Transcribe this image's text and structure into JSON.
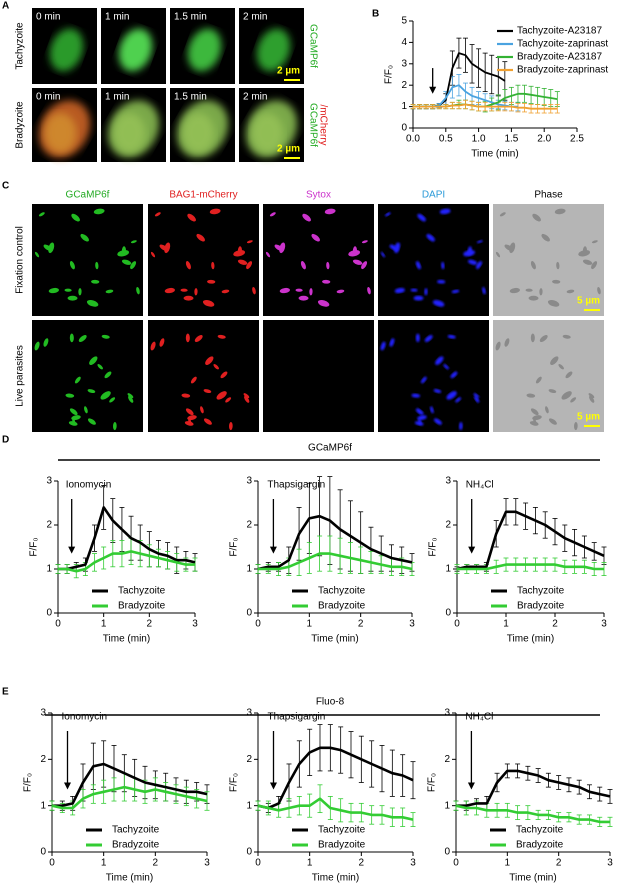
{
  "figure": {
    "panel_labels": [
      "A",
      "B",
      "C",
      "D",
      "E"
    ],
    "panel_a": {
      "rows": [
        {
          "label": "Tachyzoite",
          "times": [
            "0 min",
            "1 min",
            "1.5 min",
            "2 min"
          ],
          "scale_bar": "2 µm",
          "channels": [
            "GCaMP6f"
          ]
        },
        {
          "label": "Bradyzoite",
          "times": [
            "0 min",
            "1 min",
            "1.5 min",
            "2 min"
          ],
          "scale_bar": "2 µm",
          "channels": [
            "GCaMP6f",
            "/mCherry"
          ]
        }
      ]
    },
    "panel_c": {
      "columns": [
        "GCaMP6f",
        "BAG1-mCherry",
        "Sytox",
        "DAPI",
        "Phase"
      ],
      "rows": [
        "Fixation control",
        "Live parasites"
      ],
      "scale_bars": [
        "5 µm",
        "5 µm"
      ]
    },
    "panel_d_title": "GCaMP6f",
    "panel_e_title": "Fluo-8"
  },
  "chart_data": [
    {
      "type": "line",
      "xlabel": "Time (min)",
      "ylabel": "F/F₀",
      "legend": "upper right",
      "annotation": {
        "x": 0.3
      },
      "x": [
        0,
        0.1,
        0.2,
        0.3,
        0.4,
        0.5,
        0.6,
        0.7,
        0.8,
        0.9,
        1.0,
        1.1,
        1.2,
        1.3,
        1.4,
        1.5,
        1.6,
        1.7,
        1.8,
        1.9,
        2.0,
        2.1,
        2.2
      ],
      "xlim": [
        0,
        2.5
      ],
      "xticks": [
        {
          "value": 0,
          "label": "0.0"
        },
        0.5,
        {
          "value": 1,
          "label": "1.0"
        },
        1.5,
        {
          "value": 2,
          "label": "2.0"
        },
        2.5
      ],
      "ylim": [
        0,
        5
      ],
      "yticks": [
        0,
        1,
        2,
        3,
        4,
        5
      ],
      "series": [
        {
          "name": "Tachyzoite-A23187",
          "color": "#000000",
          "values": [
            1,
            1,
            1,
            1,
            1.05,
            1.3,
            2.8,
            3.5,
            3.4,
            3.0,
            2.8,
            2.6,
            2.5,
            2.4,
            2.2,
            null,
            null,
            null,
            null,
            null,
            null,
            null,
            null
          ],
          "errors": [
            0.1,
            0.1,
            0.1,
            0.1,
            0.1,
            0.3,
            0.8,
            0.7,
            0.8,
            0.9,
            0.9,
            0.9,
            0.9,
            0.9,
            0.9,
            null,
            null,
            null,
            null,
            null,
            null,
            null,
            null
          ]
        },
        {
          "name": "Tachyzoite-zaprinast",
          "color": "#4aa3e0",
          "values": [
            1,
            1,
            1,
            1,
            1.05,
            1.4,
            1.9,
            2.0,
            1.7,
            1.5,
            1.4,
            1.3,
            1.2,
            1.1,
            1.05,
            1.0,
            1.0,
            null,
            null,
            null,
            null,
            null,
            null
          ],
          "errors": [
            0.1,
            0.1,
            0.1,
            0.1,
            0.1,
            0.3,
            0.5,
            0.5,
            0.4,
            0.4,
            0.3,
            0.3,
            0.3,
            0.2,
            0.2,
            0.2,
            0.2,
            null,
            null,
            null,
            null,
            null,
            null
          ]
        },
        {
          "name": "Bradyzoite-A23187",
          "color": "#33b233",
          "values": [
            1,
            1,
            1,
            1,
            1,
            1,
            1.05,
            1.1,
            1.1,
            1.05,
            1.0,
            1.0,
            1.1,
            1.2,
            1.4,
            1.5,
            1.6,
            1.6,
            1.55,
            1.5,
            1.45,
            1.4,
            1.35
          ],
          "errors": [
            0.1,
            0.1,
            0.1,
            0.1,
            0.1,
            0.1,
            0.15,
            0.2,
            0.2,
            0.2,
            0.2,
            0.25,
            0.3,
            0.35,
            0.4,
            0.4,
            0.4,
            0.4,
            0.4,
            0.4,
            0.4,
            0.4,
            0.35
          ]
        },
        {
          "name": "Bradyzoite-zaprinast",
          "color": "#f0a030",
          "values": [
            1,
            1,
            1,
            1,
            1,
            1,
            1.05,
            1.05,
            1.1,
            1.05,
            1.0,
            1.0,
            1.0,
            1.0,
            1.0,
            1.0,
            0.95,
            0.95,
            0.9,
            0.9,
            0.9,
            0.9,
            0.9
          ],
          "errors": [
            0.1,
            0.1,
            0.1,
            0.1,
            0.1,
            0.1,
            0.15,
            0.15,
            0.2,
            0.2,
            0.2,
            0.2,
            0.2,
            0.2,
            0.2,
            0.2,
            0.2,
            0.2,
            0.2,
            0.2,
            0.2,
            0.2,
            0.2
          ]
        }
      ]
    },
    {
      "type": "line",
      "xlabel": "Time (min)",
      "ylabel": "F/F₀",
      "legend": "lower left",
      "annotation": {
        "text": "Ionomycin",
        "x": 0.3
      },
      "x": [
        0,
        0.2,
        0.4,
        0.6,
        0.8,
        1.0,
        1.2,
        1.4,
        1.6,
        1.8,
        2.0,
        2.2,
        2.4,
        2.6,
        2.8,
        3.0
      ],
      "xlim": [
        0,
        3
      ],
      "xticks": [
        0,
        1,
        2,
        3
      ],
      "ylim": [
        0,
        3
      ],
      "yticks": [
        0,
        1,
        2,
        3
      ],
      "series": [
        {
          "name": "Tachyzoite",
          "color": "#000000",
          "values": [
            1,
            1.0,
            1.05,
            1.1,
            1.7,
            2.4,
            2.1,
            1.9,
            1.7,
            1.6,
            1.45,
            1.35,
            1.3,
            1.2,
            1.2,
            1.15
          ],
          "errors": [
            0.1,
            0.1,
            0.1,
            0.15,
            0.3,
            0.5,
            0.5,
            0.5,
            0.5,
            0.4,
            0.4,
            0.3,
            0.3,
            0.3,
            0.2,
            0.2
          ]
        },
        {
          "name": "Bradyzoite",
          "color": "#33cc33",
          "values": [
            1,
            1,
            0.95,
            1.0,
            1.15,
            1.25,
            1.35,
            1.35,
            1.4,
            1.35,
            1.3,
            1.25,
            1.2,
            1.15,
            1.1,
            1.1
          ],
          "errors": [
            0.1,
            0.1,
            0.15,
            0.15,
            0.2,
            0.25,
            0.3,
            0.3,
            0.3,
            0.3,
            0.25,
            0.2,
            0.2,
            0.2,
            0.15,
            0.15
          ]
        }
      ]
    },
    {
      "type": "line",
      "xlabel": "Time (min)",
      "ylabel": "F/F₀",
      "legend": "lower left",
      "annotation": {
        "text": "Thapsigargin",
        "x": 0.3
      },
      "x": [
        0,
        0.2,
        0.4,
        0.6,
        0.8,
        1.0,
        1.2,
        1.4,
        1.6,
        1.8,
        2.0,
        2.2,
        2.4,
        2.6,
        2.8,
        3.0
      ],
      "xlim": [
        0,
        3
      ],
      "xticks": [
        0,
        1,
        2,
        3
      ],
      "ylim": [
        0,
        3
      ],
      "yticks": [
        0,
        1,
        2,
        3
      ],
      "series": [
        {
          "name": "Tachyzoite",
          "color": "#000000",
          "values": [
            1,
            1.05,
            1.05,
            1.2,
            1.8,
            2.15,
            2.2,
            2.1,
            1.9,
            1.75,
            1.6,
            1.45,
            1.35,
            1.25,
            1.2,
            1.15
          ],
          "errors": [
            0.1,
            0.1,
            0.1,
            0.3,
            0.6,
            0.8,
            0.9,
            1.0,
            0.9,
            0.8,
            0.7,
            0.5,
            0.4,
            0.3,
            0.3,
            0.2
          ]
        },
        {
          "name": "Bradyzoite",
          "color": "#33cc33",
          "values": [
            1,
            1,
            1,
            1.05,
            1.15,
            1.25,
            1.35,
            1.35,
            1.3,
            1.25,
            1.2,
            1.15,
            1.1,
            1.05,
            1.05,
            1.0
          ],
          "errors": [
            0.1,
            0.1,
            0.15,
            0.2,
            0.3,
            0.35,
            0.4,
            0.4,
            0.4,
            0.35,
            0.3,
            0.25,
            0.2,
            0.2,
            0.2,
            0.15
          ]
        }
      ]
    },
    {
      "type": "line",
      "xlabel": "Time (min)",
      "ylabel": "F/F₀",
      "legend": "lower left",
      "annotation": {
        "text": "NH₄Cl",
        "x": 0.3
      },
      "x": [
        0,
        0.2,
        0.4,
        0.6,
        0.8,
        1.0,
        1.2,
        1.4,
        1.6,
        1.8,
        2.0,
        2.2,
        2.4,
        2.6,
        2.8,
        3.0
      ],
      "xlim": [
        0,
        3
      ],
      "xticks": [
        0,
        1,
        2,
        3
      ],
      "ylim": [
        0,
        3
      ],
      "yticks": [
        0,
        1,
        2,
        3
      ],
      "series": [
        {
          "name": "Tachyzoite",
          "color": "#000000",
          "values": [
            1,
            1.05,
            1.05,
            1.05,
            1.8,
            2.3,
            2.3,
            2.2,
            2.1,
            2.0,
            1.85,
            1.7,
            1.6,
            1.5,
            1.4,
            1.3
          ],
          "errors": [
            0.05,
            0.05,
            0.05,
            0.1,
            0.3,
            0.3,
            0.3,
            0.3,
            0.3,
            0.3,
            0.3,
            0.3,
            0.3,
            0.25,
            0.2,
            0.2
          ]
        },
        {
          "name": "Bradyzoite",
          "color": "#33cc33",
          "values": [
            1,
            1,
            1,
            1,
            1.05,
            1.1,
            1.1,
            1.1,
            1.1,
            1.1,
            1.1,
            1.05,
            1.05,
            1.05,
            1.0,
            1.0
          ],
          "errors": [
            0.1,
            0.1,
            0.1,
            0.1,
            0.15,
            0.15,
            0.15,
            0.15,
            0.15,
            0.15,
            0.15,
            0.15,
            0.15,
            0.15,
            0.15,
            0.15
          ]
        }
      ]
    },
    {
      "type": "line",
      "xlabel": "Time (min)",
      "ylabel": "F/F₀",
      "legend": "lower left",
      "annotation": {
        "text": "Ionomycin",
        "x": 0.3
      },
      "x": [
        0,
        0.2,
        0.4,
        0.6,
        0.8,
        1.0,
        1.2,
        1.4,
        1.6,
        1.8,
        2.0,
        2.2,
        2.4,
        2.6,
        2.8,
        3.0
      ],
      "xlim": [
        0,
        3
      ],
      "xticks": [
        0,
        1,
        2,
        3
      ],
      "ylim": [
        0,
        3
      ],
      "yticks": [
        0,
        1,
        2,
        3
      ],
      "series": [
        {
          "name": "Tachyzoite",
          "color": "#000000",
          "values": [
            1,
            1,
            1.05,
            1.5,
            1.85,
            1.9,
            1.8,
            1.7,
            1.6,
            1.5,
            1.45,
            1.4,
            1.35,
            1.3,
            1.3,
            1.25
          ],
          "errors": [
            0.1,
            0.1,
            0.15,
            0.4,
            0.5,
            0.5,
            0.5,
            0.4,
            0.4,
            0.35,
            0.3,
            0.3,
            0.25,
            0.25,
            0.2,
            0.2
          ]
        },
        {
          "name": "Bradyzoite",
          "color": "#33cc33",
          "values": [
            1,
            0.95,
            0.95,
            1.15,
            1.25,
            1.3,
            1.35,
            1.4,
            1.35,
            1.3,
            1.35,
            1.3,
            1.25,
            1.2,
            1.15,
            1.1
          ],
          "errors": [
            0.1,
            0.1,
            0.15,
            0.2,
            0.2,
            0.25,
            0.25,
            0.3,
            0.25,
            0.25,
            0.25,
            0.2,
            0.2,
            0.2,
            0.2,
            0.2
          ]
        }
      ]
    },
    {
      "type": "line",
      "xlabel": "Time (min)",
      "ylabel": "F/F₀",
      "legend": "lower left",
      "annotation": {
        "text": "Thapsigargin",
        "x": 0.3
      },
      "x": [
        0,
        0.2,
        0.4,
        0.6,
        0.8,
        1.0,
        1.2,
        1.4,
        1.6,
        1.8,
        2.0,
        2.2,
        2.4,
        2.6,
        2.8,
        3.0
      ],
      "xlim": [
        0,
        3
      ],
      "xticks": [
        0,
        1,
        2,
        3
      ],
      "ylim": [
        0,
        3
      ],
      "yticks": [
        0,
        1,
        2,
        3
      ],
      "series": [
        {
          "name": "Tachyzoite",
          "color": "#000000",
          "values": [
            1,
            0.95,
            1.05,
            1.5,
            1.9,
            2.15,
            2.25,
            2.25,
            2.2,
            2.1,
            2.0,
            1.9,
            1.8,
            1.7,
            1.65,
            1.55
          ],
          "errors": [
            0.1,
            0.1,
            0.15,
            0.4,
            0.5,
            0.5,
            0.5,
            0.5,
            0.5,
            0.5,
            0.5,
            0.5,
            0.5,
            0.5,
            0.45,
            0.4
          ]
        },
        {
          "name": "Bradyzoite",
          "color": "#33cc33",
          "values": [
            1,
            0.95,
            0.9,
            0.95,
            1.0,
            1.0,
            1.15,
            0.95,
            0.9,
            0.85,
            0.85,
            0.8,
            0.8,
            0.75,
            0.75,
            0.7
          ],
          "errors": [
            0.1,
            0.15,
            0.15,
            0.2,
            0.2,
            0.25,
            0.3,
            0.25,
            0.25,
            0.2,
            0.2,
            0.2,
            0.2,
            0.2,
            0.2,
            0.15
          ]
        }
      ]
    },
    {
      "type": "line",
      "xlabel": "Time (min)",
      "ylabel": "F/F₀",
      "legend": "lower left",
      "annotation": {
        "text": "NH₄Cl",
        "x": 0.3
      },
      "x": [
        0,
        0.2,
        0.4,
        0.6,
        0.8,
        1.0,
        1.2,
        1.4,
        1.6,
        1.8,
        2.0,
        2.2,
        2.4,
        2.6,
        2.8,
        3.0
      ],
      "xlim": [
        0,
        3
      ],
      "xticks": [
        0,
        1,
        2,
        3
      ],
      "ylim": [
        0,
        3
      ],
      "yticks": [
        0,
        1,
        2,
        3
      ],
      "series": [
        {
          "name": "Tachyzoite",
          "color": "#000000",
          "values": [
            1,
            1,
            1.05,
            1.05,
            1.5,
            1.75,
            1.75,
            1.7,
            1.65,
            1.55,
            1.5,
            1.45,
            1.4,
            1.3,
            1.25,
            1.2
          ],
          "errors": [
            0.1,
            0.1,
            0.1,
            0.15,
            0.2,
            0.15,
            0.15,
            0.15,
            0.15,
            0.15,
            0.15,
            0.15,
            0.15,
            0.15,
            0.15,
            0.15
          ]
        },
        {
          "name": "Bradyzoite",
          "color": "#33cc33",
          "values": [
            1,
            0.95,
            0.95,
            0.9,
            0.9,
            0.9,
            0.85,
            0.85,
            0.8,
            0.8,
            0.75,
            0.75,
            0.7,
            0.7,
            0.65,
            0.65
          ],
          "errors": [
            0.1,
            0.15,
            0.15,
            0.15,
            0.15,
            0.15,
            0.15,
            0.15,
            0.1,
            0.1,
            0.1,
            0.1,
            0.1,
            0.1,
            0.1,
            0.1
          ]
        }
      ]
    }
  ]
}
